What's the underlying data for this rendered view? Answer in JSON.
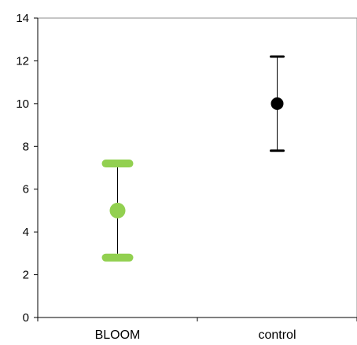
{
  "chart_data": {
    "type": "scatter",
    "title": "",
    "xlabel": "",
    "ylabel": "",
    "categories": [
      "BLOOM",
      "control"
    ],
    "ylim": [
      0,
      14
    ],
    "yticks": [
      0,
      2,
      4,
      6,
      8,
      10,
      12,
      14
    ],
    "grid": false,
    "legend": "none",
    "points": [
      {
        "category": "BLOOM",
        "y": 5.0,
        "error_low": 2.8,
        "error_high": 7.2,
        "color": "#92d050"
      },
      {
        "category": "control",
        "y": 10.0,
        "error_low": 7.8,
        "error_high": 12.2,
        "color": "#000000"
      }
    ]
  }
}
